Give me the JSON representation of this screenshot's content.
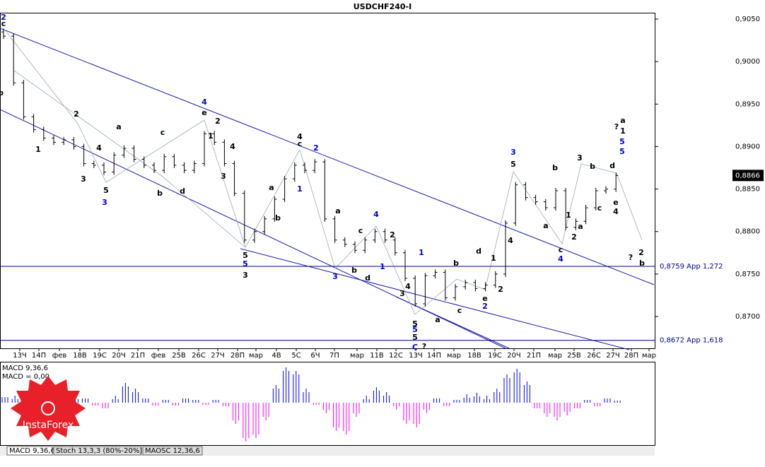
{
  "chart_data": {
    "type": "bar",
    "title": "USDCHF240-I",
    "color": "#000000",
    "values": [
      0.903,
      0.8975,
      0.8935,
      0.892,
      0.891,
      0.8905,
      0.8908,
      0.89,
      0.888,
      0.8878,
      0.887,
      0.889,
      0.8898,
      0.8885,
      0.8878,
      0.8872,
      0.8888,
      0.8878,
      0.8872,
      0.888,
      0.8915,
      0.8905,
      0.888,
      0.8845,
      0.879,
      0.88,
      0.8815,
      0.8838,
      0.8862,
      0.8878,
      0.8872,
      0.8882,
      0.8815,
      0.879,
      0.8785,
      0.8778,
      0.879,
      0.88,
      0.879,
      0.8775,
      0.8745,
      0.8715,
      0.8748,
      0.8752,
      0.8722,
      0.8735,
      0.874,
      0.8733,
      0.8737,
      0.875,
      0.881,
      0.8855,
      0.884,
      0.8835,
      0.8828,
      0.8848,
      0.8805,
      0.8812,
      0.8828,
      0.8848,
      0.885,
      0.8866
    ],
    "ylim": [
      0.86626,
      0.90575
    ],
    "yticks": [
      {
        "value": 0.905,
        "label": "0,9050"
      },
      {
        "value": 0.9,
        "label": "0,9000"
      },
      {
        "value": 0.895,
        "label": "0,8950"
      },
      {
        "value": 0.89,
        "label": "0,8900"
      },
      {
        "value": 0.885,
        "label": "0,8850"
      },
      {
        "value": 0.88,
        "label": "0,8800"
      },
      {
        "value": 0.875,
        "label": "0,8750"
      },
      {
        "value": 0.87,
        "label": "0,8700"
      }
    ],
    "last_price": {
      "value": 0.8866,
      "label": "0,8866"
    },
    "levels": [
      {
        "value": 0.8759,
        "label": "0,8759 App 1,272",
        "color": "#00008b"
      },
      {
        "value": 0.8672,
        "label": "0,8672 App 1,618",
        "color": "#00008b"
      }
    ],
    "xlabels": [
      "13Ч",
      "14П",
      "фев",
      "18В",
      "19С",
      "20Ч",
      "21П",
      "фев",
      "25В",
      "26С",
      "27Ч",
      "28П",
      "мар",
      "4В",
      "5С",
      "6Ч",
      "7П",
      "мар",
      "11В",
      "12С",
      "13Ч",
      "14П",
      "мар",
      "18В",
      "19С",
      "20Ч",
      "21П",
      "мар",
      "25В",
      "26С",
      "27Ч",
      "28П",
      "мар"
    ],
    "annotations": [
      {
        "text": "2",
        "color": "#0000cc"
      },
      {
        "text": "c",
        "color": "#000"
      },
      {
        "text": "b",
        "color": "#000"
      },
      {
        "text": "2",
        "color": "#000"
      },
      {
        "text": "1",
        "color": "#000"
      },
      {
        "text": "a",
        "color": "#000"
      },
      {
        "text": "c",
        "color": "#000"
      },
      {
        "text": "4",
        "color": "#000"
      },
      {
        "text": "3",
        "color": "#000"
      },
      {
        "text": "5",
        "color": "#000"
      },
      {
        "text": "3",
        "color": "#0000cc"
      },
      {
        "text": "b",
        "color": "#000"
      },
      {
        "text": "d",
        "color": "#000"
      },
      {
        "text": "4",
        "color": "#0000cc"
      },
      {
        "text": "e",
        "color": "#000"
      },
      {
        "text": "2",
        "color": "#000"
      },
      {
        "text": "1",
        "color": "#000"
      },
      {
        "text": "4",
        "color": "#000"
      },
      {
        "text": "3",
        "color": "#000"
      },
      {
        "text": "5",
        "color": "#000"
      },
      {
        "text": "5",
        "color": "#0000cc"
      },
      {
        "text": "3",
        "color": "#000"
      },
      {
        "text": "a",
        "color": "#000"
      },
      {
        "text": "b",
        "color": "#000"
      },
      {
        "text": "4",
        "color": "#000"
      },
      {
        "text": "c",
        "color": "#000"
      },
      {
        "text": "1",
        "color": "#0000cc"
      },
      {
        "text": "2",
        "color": "#0000cc"
      },
      {
        "text": "a",
        "color": "#000"
      },
      {
        "text": "3",
        "color": "#0000cc"
      },
      {
        "text": "b",
        "color": "#000"
      },
      {
        "text": "c",
        "color": "#000"
      },
      {
        "text": "d",
        "color": "#000"
      },
      {
        "text": "4",
        "color": "#0000cc"
      },
      {
        "text": "2",
        "color": "#000"
      },
      {
        "text": "1",
        "color": "#0000cc"
      },
      {
        "text": "4",
        "color": "#000"
      },
      {
        "text": "3",
        "color": "#000"
      },
      {
        "text": "5",
        "color": "#000"
      },
      {
        "text": "5",
        "color": "#0000cc"
      },
      {
        "text": "5",
        "color": "#000"
      },
      {
        "text": "C",
        "color": "#0000cc"
      },
      {
        "text": "?",
        "color": "#000"
      },
      {
        "text": "1",
        "color": "#0000cc"
      },
      {
        "text": "a",
        "color": "#000"
      },
      {
        "text": "b",
        "color": "#000"
      },
      {
        "text": "c",
        "color": "#000"
      },
      {
        "text": "d",
        "color": "#000"
      },
      {
        "text": "e",
        "color": "#000"
      },
      {
        "text": "2",
        "color": "#0000cc"
      },
      {
        "text": "1",
        "color": "#000"
      },
      {
        "text": "2",
        "color": "#000"
      },
      {
        "text": "3",
        "color": "#0000cc"
      },
      {
        "text": "5",
        "color": "#000"
      },
      {
        "text": "4",
        "color": "#000"
      },
      {
        "text": "a",
        "color": "#000"
      },
      {
        "text": "b",
        "color": "#000"
      },
      {
        "text": "c",
        "color": "#000"
      },
      {
        "text": "4",
        "color": "#0000cc"
      },
      {
        "text": "1",
        "color": "#000"
      },
      {
        "text": "2",
        "color": "#000"
      },
      {
        "text": "3",
        "color": "#000"
      },
      {
        "text": "a",
        "color": "#000"
      },
      {
        "text": "b",
        "color": "#000"
      },
      {
        "text": "c",
        "color": "#000"
      },
      {
        "text": "d",
        "color": "#000"
      },
      {
        "text": "e",
        "color": "#000"
      },
      {
        "text": "4",
        "color": "#000"
      },
      {
        "text": "?",
        "color": "#000"
      },
      {
        "text": "a",
        "color": "#000"
      },
      {
        "text": "1",
        "color": "#000"
      },
      {
        "text": "5",
        "color": "#0000cc"
      },
      {
        "text": "5",
        "color": "#0000cc"
      },
      {
        "text": "?",
        "color": "#000"
      },
      {
        "text": "2",
        "color": "#000"
      },
      {
        "text": "b",
        "color": "#000"
      }
    ],
    "macd": {
      "label": "MACD 9,36,6",
      "value_label": "MACD = 0,00",
      "positive_color": "#0000ff",
      "negative_color": "#ff00ff",
      "values": [
        8,
        10,
        12,
        10,
        8,
        6,
        8,
        10,
        6,
        -4,
        -8,
        10,
        28,
        20,
        6,
        -4,
        4,
        -4,
        6,
        4,
        -3,
        4,
        -5,
        -30,
        -55,
        -50,
        -25,
        25,
        50,
        45,
        20,
        -3,
        -15,
        -40,
        -45,
        -20,
        10,
        22,
        15,
        -10,
        -30,
        -35,
        -15,
        6,
        -5,
        4,
        12,
        14,
        10,
        20,
        40,
        48,
        30,
        -8,
        -20,
        -25,
        -18,
        -8,
        4,
        -5,
        6,
        3
      ],
      "ylim": [
        -57,
        55
      ]
    },
    "tabs": [
      "MACD 9,36,6",
      "Stoch 13,3,3 (80%-20%)",
      "MAOSC 12,36,6"
    ],
    "logo": "InstaForex"
  }
}
